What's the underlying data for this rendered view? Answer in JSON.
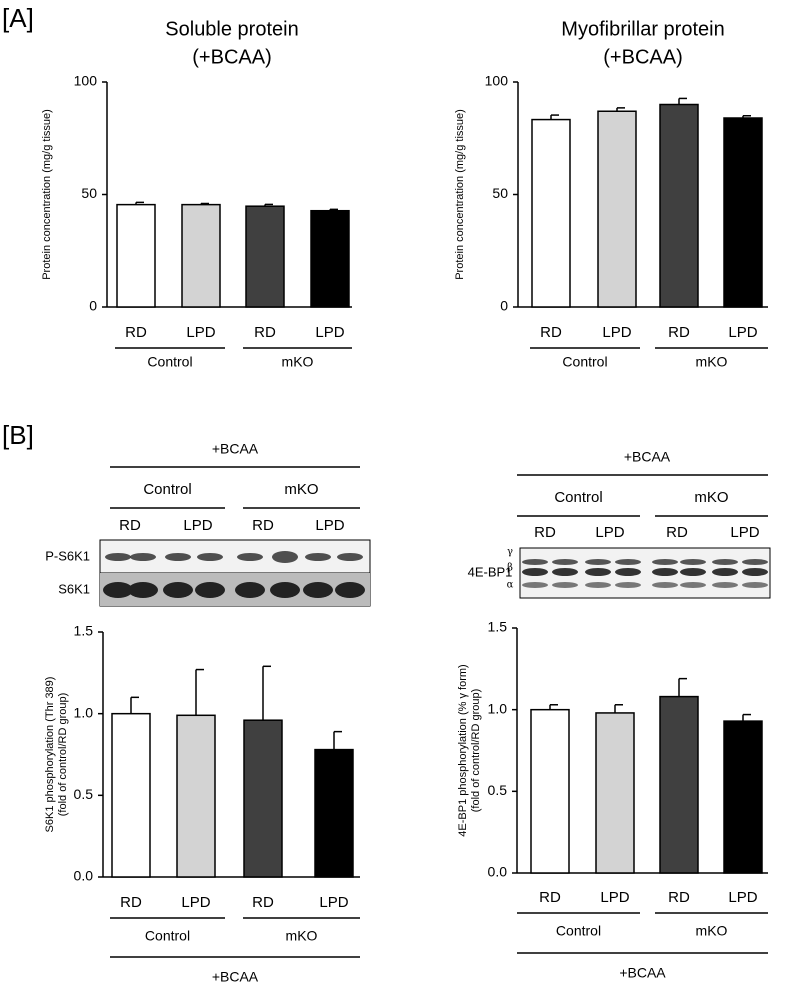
{
  "panels": [
    "[A]",
    "[B]"
  ],
  "chart_data": [
    {
      "type": "bar",
      "title": "Soluble protein",
      "subtitle": "(+BCAA)",
      "ylabel": [
        "Protein concentration (mg/g tissue)"
      ],
      "categories": [
        "RD",
        "LPD",
        "RD",
        "LPD"
      ],
      "groups": [
        "Control",
        "mKO"
      ],
      "values": [
        45.5,
        45.5,
        44.8,
        42.8
      ],
      "errors": [
        1.0,
        0.5,
        0.8,
        0.6
      ],
      "colors": [
        "#ffffff",
        "#d3d3d3",
        "#404040",
        "#000000"
      ],
      "ylim": [
        0,
        100
      ],
      "yticks": [
        0,
        50,
        100
      ]
    },
    {
      "type": "bar",
      "title": "Myofibrillar protein",
      "subtitle": "(+BCAA)",
      "ylabel": [
        "Protein concentration (mg/g tissue)"
      ],
      "categories": [
        "RD",
        "LPD",
        "RD",
        "LPD"
      ],
      "groups": [
        "Control",
        "mKO"
      ],
      "values": [
        83.3,
        87,
        90,
        84
      ],
      "errors": [
        2,
        1.5,
        2.7,
        1
      ],
      "colors": [
        "#ffffff",
        "#d3d3d3",
        "#404040",
        "#000000"
      ],
      "ylim": [
        0,
        100
      ],
      "yticks": [
        0,
        50,
        100
      ]
    },
    {
      "type": "bar",
      "ylabel": [
        "S6K1 phosphorylation (Thr 389)",
        "(fold of control/RD group)"
      ],
      "categories": [
        "RD",
        "LPD",
        "RD",
        "LPD"
      ],
      "groups": [
        "Control",
        "mKO"
      ],
      "group_label": "+BCAA",
      "values": [
        1.0,
        0.99,
        0.96,
        0.78
      ],
      "errors": [
        0.1,
        0.28,
        0.33,
        0.11
      ],
      "colors": [
        "#ffffff",
        "#d3d3d3",
        "#404040",
        "#000000"
      ],
      "ylim": [
        0,
        1.5
      ],
      "yticks": [
        {
          "value": 0,
          "label": "0.0"
        },
        0.5,
        {
          "value": 1,
          "label": "1.0"
        },
        1.5
      ]
    },
    {
      "type": "bar",
      "ylabel": [
        "4E-BP1 phosphorylation (% γ form)",
        "(fold of control/RD group)"
      ],
      "categories": [
        "RD",
        "LPD",
        "RD",
        "LPD"
      ],
      "groups": [
        "Control",
        "mKO"
      ],
      "group_label": "+BCAA",
      "values": [
        1.0,
        0.98,
        1.08,
        0.93
      ],
      "errors": [
        0.03,
        0.05,
        0.11,
        0.04
      ],
      "colors": [
        "#ffffff",
        "#d3d3d3",
        "#404040",
        "#000000"
      ],
      "ylim": [
        0,
        1.5
      ],
      "yticks": [
        {
          "value": 0,
          "label": "0.0"
        },
        0.5,
        {
          "value": 1,
          "label": "1.0"
        },
        1.5
      ]
    }
  ],
  "blots": [
    {
      "header": "+BCAA",
      "groups": [
        "Control",
        "mKO"
      ],
      "lanes": [
        "RD",
        "LPD",
        "RD",
        "LPD"
      ],
      "rows": [
        "P-S6K1",
        "S6K1"
      ]
    },
    {
      "header": "+BCAA",
      "groups": [
        "Control",
        "mKO"
      ],
      "lanes": [
        "RD",
        "LPD",
        "RD",
        "LPD"
      ],
      "rows": [
        "4E-BP1"
      ],
      "forms": [
        "γ",
        "β",
        "α"
      ]
    }
  ]
}
